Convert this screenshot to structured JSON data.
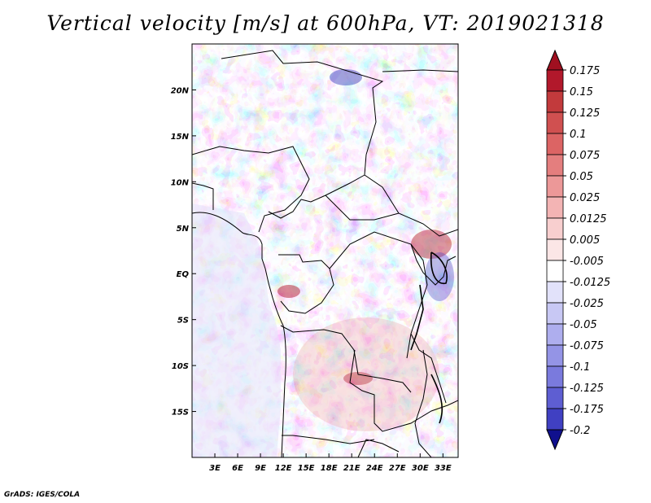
{
  "title": "Vertical velocity [m/s] at 600hPa, VT: 2019021318",
  "credit": "GrADS: IGES/COLA",
  "map": {
    "lat_range": [
      -20,
      25
    ],
    "lon_range": [
      0,
      35
    ],
    "lat_ticks": [
      {
        "value": 20,
        "label": "20N"
      },
      {
        "value": 15,
        "label": "15N"
      },
      {
        "value": 10,
        "label": "10N"
      },
      {
        "value": 5,
        "label": "5N"
      },
      {
        "value": 0,
        "label": "EQ"
      },
      {
        "value": -5,
        "label": "5S"
      },
      {
        "value": -10,
        "label": "10S"
      },
      {
        "value": -15,
        "label": "15S"
      }
    ],
    "lon_ticks": [
      {
        "value": 3,
        "label": "3E"
      },
      {
        "value": 6,
        "label": "6E"
      },
      {
        "value": 9,
        "label": "9E"
      },
      {
        "value": 12,
        "label": "12E"
      },
      {
        "value": 15,
        "label": "15E"
      },
      {
        "value": 18,
        "label": "18E"
      },
      {
        "value": 21,
        "label": "21E"
      },
      {
        "value": 24,
        "label": "24E"
      },
      {
        "value": 27,
        "label": "27E"
      },
      {
        "value": 30,
        "label": "30E"
      },
      {
        "value": 33,
        "label": "33E"
      }
    ]
  },
  "colorbar": {
    "levels": [
      {
        "label": "0.175",
        "color": "#b2182b"
      },
      {
        "label": "0.15",
        "color": "#c23a3c"
      },
      {
        "label": "0.125",
        "color": "#d05050"
      },
      {
        "label": "0.1",
        "color": "#dc6464"
      },
      {
        "label": "0.075",
        "color": "#e47e7e"
      },
      {
        "label": "0.05",
        "color": "#ec9898"
      },
      {
        "label": "0.025",
        "color": "#f3b4b4"
      },
      {
        "label": "0.0125",
        "color": "#f8cfcf"
      },
      {
        "label": "0.005",
        "color": "#fbe6e6"
      },
      {
        "label": "-0.005",
        "color": "#ffffff"
      },
      {
        "label": "-0.0125",
        "color": "#e2e2fa"
      },
      {
        "label": "-0.025",
        "color": "#c8c8f4"
      },
      {
        "label": "-0.05",
        "color": "#aeaeee"
      },
      {
        "label": "-0.075",
        "color": "#9494e6"
      },
      {
        "label": "-0.1",
        "color": "#7a7add"
      },
      {
        "label": "-0.125",
        "color": "#5e5ed2"
      },
      {
        "label": "-0.175",
        "color": "#4040c2"
      },
      {
        "label": "-0.2",
        "color": "#2020ae"
      }
    ],
    "top_arrow_color": "#a01020",
    "bottom_arrow_color": "#10108e"
  }
}
